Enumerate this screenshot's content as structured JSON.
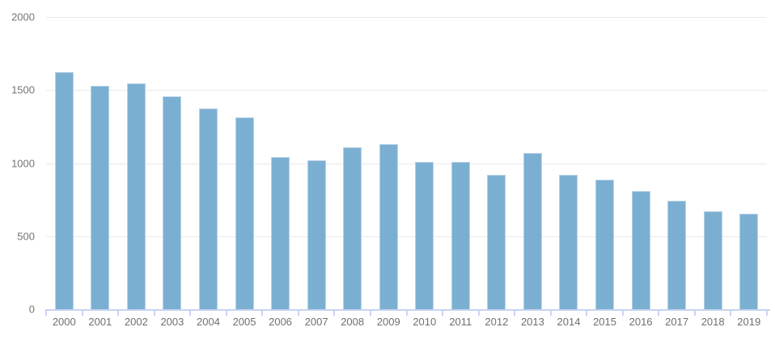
{
  "chart_data": {
    "type": "bar",
    "title": "",
    "xlabel": "",
    "ylabel": "",
    "categories": [
      "2000",
      "2001",
      "2002",
      "2003",
      "2004",
      "2005",
      "2006",
      "2007",
      "2008",
      "2009",
      "2010",
      "2011",
      "2012",
      "2013",
      "2014",
      "2015",
      "2016",
      "2017",
      "2018",
      "2019"
    ],
    "values": [
      1622,
      1528,
      1544,
      1456,
      1372,
      1311,
      1039,
      1022,
      1106,
      1130,
      1011,
      1011,
      922,
      1072,
      917,
      889,
      811,
      744,
      672,
      656
    ],
    "ylim": [
      0,
      2000
    ],
    "y_ticks": [
      0,
      500,
      1000,
      1500,
      2000
    ],
    "grid": "horizontal",
    "legend": "none",
    "colors": {
      "bar_fill": "#7bafd2",
      "bar_edge": "#b9d3e6",
      "axis_line": "#c5d4ed",
      "gridline": "#e9e9e9",
      "y_label_text": "#757575",
      "x_label_text": "#6f6f6f",
      "background": "#ffffff"
    }
  }
}
